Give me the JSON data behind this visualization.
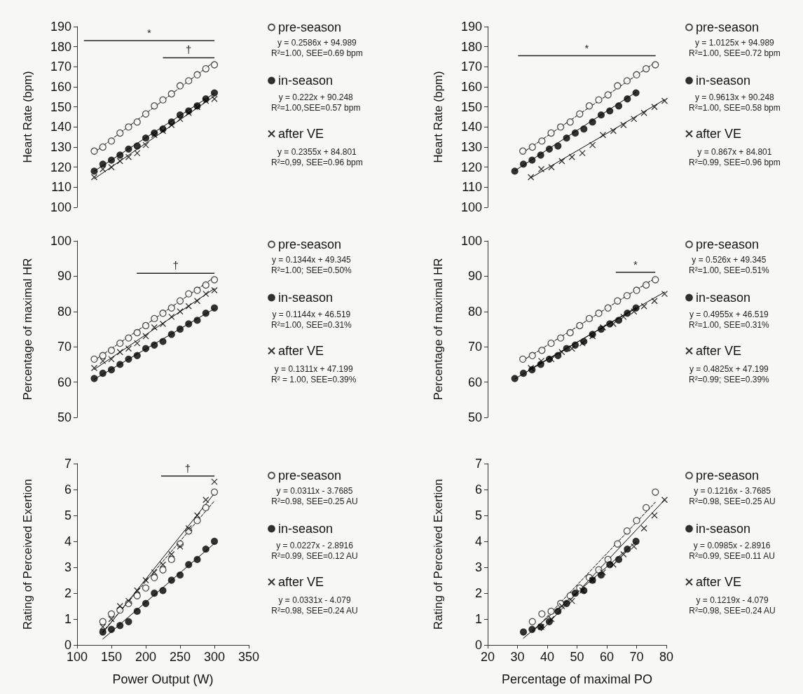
{
  "chart_data": [
    {
      "type": "scatter",
      "ylabel": "Heart Rate (bpm)",
      "xlim": [
        100,
        350
      ],
      "xticks": [
        100,
        150,
        200,
        250,
        300,
        350
      ],
      "ylim": [
        100,
        190
      ],
      "yticks": [
        100,
        110,
        120,
        130,
        140,
        150,
        160,
        170,
        180,
        190
      ],
      "tick_labels": "y",
      "legend": "right",
      "series": [
        {
          "name": "pre-season",
          "color": "#ffffff",
          "marker": "circle",
          "x": [
            125,
            137.5,
            150,
            162.5,
            175,
            187.5,
            200,
            212.5,
            225,
            237.5,
            250,
            262.5,
            275,
            287.5,
            300
          ],
          "values": [
            128,
            130,
            133,
            137,
            140,
            142.5,
            146.5,
            150.5,
            153.5,
            156.5,
            160.5,
            163,
            166,
            169,
            171
          ]
        },
        {
          "name": "in-season",
          "color": "#000000",
          "marker": "circle",
          "x": [
            125,
            137.5,
            150,
            162.5,
            175,
            187.5,
            200,
            212.5,
            225,
            237.5,
            250,
            262.5,
            275,
            287.5,
            300
          ],
          "values": [
            118,
            121.5,
            123.5,
            126,
            129,
            130.5,
            134.5,
            137,
            139,
            142.5,
            146,
            148,
            150.5,
            154,
            157
          ]
        },
        {
          "name": "after VE",
          "color": "#000000",
          "marker": "cross",
          "x": [
            125,
            137.5,
            150,
            162.5,
            175,
            187.5,
            200,
            212.5,
            225,
            237.5,
            250,
            262.5,
            275,
            287.5,
            300
          ],
          "values": [
            115,
            119,
            120,
            123,
            125,
            127,
            131,
            136,
            138,
            141,
            144,
            147,
            150,
            153,
            154
          ]
        },
        {
          "type": "line",
          "color": "#000000",
          "line_style": "dashed",
          "marker": "none",
          "x": [
            125,
            300
          ],
          "values": [
            127.3,
            172.6
          ]
        },
        {
          "type": "line",
          "color": "#000000",
          "line_style": "solid",
          "marker": "none",
          "x": [
            125,
            300
          ],
          "values": [
            118,
            156.8
          ]
        },
        {
          "type": "line",
          "color": "#000000",
          "line_style": "solid",
          "marker": "none",
          "x": [
            125,
            300
          ],
          "values": [
            114.2,
            155.4
          ]
        }
      ],
      "annotations": [
        "*",
        "†",
        "y = 0.2586x + 94.989\nR²=1.00, SEE=0.69 bpm",
        "y = 0.222x + 90.248\nR²=1.00,SEE=0.57 bpm",
        "y = 0.2355x + 84.801\nR²=0,99, SEE=0.96 bpm"
      ]
    },
    {
      "type": "scatter",
      "ylabel": "Heart Rate (bpm)",
      "xlim": [
        20,
        80
      ],
      "xticks": [
        20,
        30,
        40,
        50,
        60,
        70,
        80
      ],
      "ylim": [
        100,
        190
      ],
      "yticks": [
        100,
        110,
        120,
        130,
        140,
        150,
        160,
        170,
        180,
        190
      ],
      "tick_labels": "y",
      "legend": "right",
      "series": [
        {
          "name": "pre-season",
          "color": "#ffffff",
          "marker": "circle",
          "x": [
            31.8,
            35.0,
            38.2,
            41.3,
            44.5,
            47.7,
            50.9,
            54.1,
            57.3,
            60.4,
            63.6,
            66.8,
            70.0,
            73.2,
            76.3
          ],
          "values": [
            128,
            130,
            133,
            137,
            140,
            142.5,
            146.5,
            150.5,
            153.5,
            156,
            160.5,
            163,
            166,
            169,
            171
          ]
        },
        {
          "name": "in-season",
          "color": "#000000",
          "marker": "circle",
          "x": [
            29.1,
            32.0,
            34.9,
            37.8,
            40.7,
            43.6,
            46.5,
            49.4,
            52.3,
            55.2,
            58.1,
            61.0,
            64.0,
            66.9,
            69.8
          ],
          "values": [
            118,
            121.5,
            123.5,
            126,
            129,
            130.5,
            134.5,
            137,
            139,
            142.5,
            146,
            148,
            150.5,
            154,
            157
          ]
        },
        {
          "name": "after VE",
          "color": "#000000",
          "marker": "cross",
          "x": [
            34.5,
            38.0,
            41.4,
            44.9,
            48.3,
            51.8,
            55.2,
            58.7,
            62.2,
            65.6,
            69.1,
            72.5,
            76.0,
            79.4
          ],
          "values": [
            115,
            119,
            120,
            123,
            125,
            127,
            131,
            136,
            138,
            141,
            144,
            147,
            150,
            153
          ]
        },
        {
          "type": "line",
          "color": "#000000",
          "line_style": "dashed",
          "marker": "none",
          "x": [
            31.8,
            76.3
          ],
          "values": [
            127.2,
            172.2
          ]
        },
        {
          "type": "line",
          "color": "#000000",
          "line_style": "solid",
          "marker": "none",
          "x": [
            29.1,
            69.8
          ],
          "values": [
            118.2,
            157.3
          ]
        },
        {
          "type": "line",
          "color": "#000000",
          "line_style": "solid",
          "marker": "none",
          "x": [
            34.5,
            79.4
          ],
          "values": [
            114.7,
            153.6
          ]
        }
      ],
      "annotations": [
        "*",
        "y = 1.0125x + 94.989\nR²=1.00, SEE=0.72 bpm",
        "y = 0.9613x + 90.248\nR²=1.00, SEE=0.58 bpm",
        "y = 0.867x + 84.801\nR²=0.99, SEE=0.96 bpm"
      ]
    },
    {
      "type": "scatter",
      "ylabel": "Percentage of maximal HR",
      "xlim": [
        100,
        350
      ],
      "xticks": [
        100,
        150,
        200,
        250,
        300,
        350
      ],
      "ylim": [
        50,
        100
      ],
      "yticks": [
        50,
        60,
        70,
        80,
        90,
        100
      ],
      "tick_labels": "y",
      "legend": "right",
      "series": [
        {
          "name": "pre-season",
          "color": "#ffffff",
          "marker": "circle",
          "x": [
            125,
            137.5,
            150,
            162.5,
            175,
            187.5,
            200,
            212.5,
            225,
            237.5,
            250,
            262.5,
            275,
            287.5,
            300
          ],
          "values": [
            66.5,
            67.5,
            69,
            71,
            72.5,
            74,
            76,
            78,
            79.5,
            81,
            83,
            85,
            86,
            87.5,
            89
          ]
        },
        {
          "name": "in-season",
          "color": "#000000",
          "marker": "circle",
          "x": [
            125,
            137.5,
            150,
            162.5,
            175,
            187.5,
            200,
            212.5,
            225,
            237.5,
            250,
            262.5,
            275,
            287.5,
            300
          ],
          "values": [
            61,
            62.5,
            63.5,
            65,
            66.5,
            67.5,
            69.5,
            70.5,
            71.5,
            73.5,
            75,
            76.5,
            77.5,
            79.5,
            81
          ]
        },
        {
          "name": "after VE",
          "color": "#000000",
          "marker": "cross",
          "x": [
            125,
            137.5,
            150,
            162.5,
            175,
            187.5,
            200,
            212.5,
            225,
            237.5,
            250,
            262.5,
            275,
            287.5,
            300
          ],
          "values": [
            64,
            66,
            66.5,
            68.5,
            69.5,
            71,
            73,
            75.5,
            76.5,
            78.5,
            80,
            81.5,
            83,
            85,
            86
          ]
        },
        {
          "type": "line",
          "color": "#000000",
          "line_style": "dashed",
          "marker": "none",
          "x": [
            125,
            300
          ],
          "values": [
            66.1,
            89.7
          ]
        },
        {
          "type": "line",
          "color": "#000000",
          "line_style": "solid",
          "marker": "none",
          "x": [
            125,
            300
          ],
          "values": [
            60.8,
            80.8
          ]
        },
        {
          "type": "line",
          "color": "#000000",
          "line_style": "solid",
          "marker": "none",
          "x": [
            125,
            300
          ],
          "values": [
            63.6,
            86.5
          ]
        }
      ],
      "annotations": [
        "†",
        "y = 0.1344x + 49.345\nR²=1.00; SEE=0.50%",
        "y = 0.1144x + 46.519\nR²=1.00, SEE=0.31%",
        "y = 0.1311x + 47.199\nR² = 1.00, SEE=0.39%"
      ]
    },
    {
      "type": "scatter",
      "ylabel": "Percentage of maximal HR",
      "xlim": [
        20,
        80
      ],
      "xticks": [
        20,
        30,
        40,
        50,
        60,
        70,
        80
      ],
      "ylim": [
        50,
        100
      ],
      "yticks": [
        50,
        60,
        70,
        80,
        90,
        100
      ],
      "tick_labels": "y",
      "legend": "right",
      "series": [
        {
          "name": "pre-season",
          "color": "#ffffff",
          "marker": "circle",
          "x": [
            31.8,
            35.0,
            38.2,
            41.3,
            44.5,
            47.7,
            50.9,
            54.1,
            57.3,
            60.4,
            63.6,
            66.8,
            70.0,
            73.2,
            76.3
          ],
          "values": [
            66.5,
            67.5,
            69,
            71,
            72.5,
            74,
            76,
            78,
            79.5,
            81,
            83,
            84.5,
            86,
            87.5,
            89
          ]
        },
        {
          "name": "in-season",
          "color": "#000000",
          "marker": "circle",
          "x": [
            29.1,
            32.0,
            34.9,
            37.8,
            40.7,
            43.6,
            46.5,
            49.4,
            52.3,
            55.2,
            58.1,
            61.0,
            64.0,
            66.9,
            69.8
          ],
          "values": [
            61,
            62.5,
            63.5,
            65,
            66.5,
            67.5,
            69.5,
            70.5,
            71.5,
            73.5,
            75,
            76.5,
            77.5,
            79.5,
            81
          ]
        },
        {
          "name": "after VE",
          "color": "#000000",
          "marker": "cross",
          "x": [
            34.5,
            38.0,
            41.4,
            44.9,
            48.3,
            51.8,
            55.2,
            58.7,
            62.2,
            65.6,
            69.1,
            72.5,
            76.0,
            79.4
          ],
          "values": [
            64,
            66,
            66.5,
            68.5,
            69.5,
            71,
            73,
            75.5,
            76.5,
            78.5,
            80,
            81.5,
            83,
            85
          ]
        },
        {
          "type": "line",
          "color": "#000000",
          "line_style": "dashed",
          "marker": "none",
          "x": [
            31.8,
            76.3
          ],
          "values": [
            66.1,
            89.5
          ]
        },
        {
          "type": "line",
          "color": "#000000",
          "line_style": "solid",
          "marker": "none",
          "x": [
            29.1,
            69.8
          ],
          "values": [
            60.9,
            81.1
          ]
        },
        {
          "type": "line",
          "color": "#000000",
          "line_style": "solid",
          "marker": "none",
          "x": [
            34.5,
            79.4
          ],
          "values": [
            63.8,
            85.5
          ]
        }
      ],
      "annotations": [
        "*",
        "y = 0.526x + 49.345\nR²=1.00, SEE=0.51%",
        "y = 0.4955x + 46.519\nR²=1.00, SEE=0.31%",
        "y = 0.4825x + 47.199\nR²=0.99; SEE=0.39%"
      ]
    },
    {
      "type": "scatter",
      "ylabel": "Rating of Perceived Exertion",
      "xlabel": "Power Output (W)",
      "xlim": [
        100,
        350
      ],
      "xticks": [
        100,
        150,
        200,
        250,
        300,
        350
      ],
      "ylim": [
        0,
        7
      ],
      "yticks": [
        0,
        1,
        2,
        3,
        4,
        5,
        6,
        7
      ],
      "legend": "right",
      "series": [
        {
          "name": "pre-season",
          "color": "#ffffff",
          "marker": "circle",
          "x": [
            137.5,
            150,
            162.5,
            175,
            187.5,
            200,
            212.5,
            225,
            237.5,
            250,
            262.5,
            275,
            287.5,
            300
          ],
          "values": [
            0.9,
            1.2,
            1.35,
            1.6,
            1.9,
            2.2,
            2.6,
            2.9,
            3.3,
            3.9,
            4.4,
            4.8,
            5.3,
            5.9
          ]
        },
        {
          "name": "in-season",
          "color": "#000000",
          "marker": "circle",
          "x": [
            137.5,
            150,
            162.5,
            175,
            187.5,
            200,
            212.5,
            225,
            237.5,
            250,
            262.5,
            275,
            287.5,
            300
          ],
          "values": [
            0.5,
            0.6,
            0.75,
            0.9,
            1.3,
            1.6,
            2.0,
            2.1,
            2.5,
            2.7,
            3.1,
            3.3,
            3.7,
            4.0
          ]
        },
        {
          "name": "after VE",
          "color": "#000000",
          "marker": "cross",
          "x": [
            137.5,
            150,
            162.5,
            175,
            187.5,
            200,
            212.5,
            225,
            237.5,
            250,
            262.5,
            275,
            287.5,
            300
          ],
          "values": [
            0.7,
            1.0,
            1.5,
            1.7,
            2.1,
            2.5,
            2.8,
            3.1,
            3.5,
            3.8,
            4.5,
            5.0,
            5.6,
            6.3
          ]
        },
        {
          "type": "line",
          "color": "#000000",
          "line_style": "dashed",
          "marker": "none",
          "x": [
            137.5,
            300
          ],
          "values": [
            0.51,
            5.56
          ]
        },
        {
          "type": "line",
          "color": "#000000",
          "line_style": "solid",
          "marker": "none",
          "x": [
            137.5,
            300
          ],
          "values": [
            0.23,
            3.92
          ]
        },
        {
          "type": "line",
          "color": "#000000",
          "line_style": "solid",
          "marker": "none",
          "x": [
            137.5,
            300
          ],
          "values": [
            0.47,
            5.85
          ]
        }
      ],
      "annotations": [
        "†",
        "y = 0.0311x - 3.7685\nR²=0.98, SEE=0.25 AU",
        "y = 0.0227x - 2.8916\nR²=0.99, SEE=0.12 AU",
        "y = 0.0331x - 4.079\nR²=0.98, SEE=0.24 AU"
      ]
    },
    {
      "type": "scatter",
      "ylabel": "Rating of Perceived Exertion",
      "xlabel": "Percentage of maximal PO",
      "xlim": [
        20,
        80
      ],
      "xticks": [
        20,
        30,
        40,
        50,
        60,
        70,
        80
      ],
      "ylim": [
        0,
        7
      ],
      "yticks": [
        0,
        1,
        2,
        3,
        4,
        5,
        6,
        7
      ],
      "legend": "right",
      "series": [
        {
          "name": "pre-season",
          "color": "#ffffff",
          "marker": "circle",
          "x": [
            35.0,
            38.2,
            41.3,
            44.5,
            47.7,
            50.9,
            54.1,
            57.3,
            60.4,
            63.6,
            66.8,
            70.0,
            73.2,
            76.3
          ],
          "values": [
            0.9,
            1.2,
            1.3,
            1.6,
            1.9,
            2.2,
            2.6,
            2.9,
            3.3,
            3.9,
            4.4,
            4.8,
            5.3,
            5.9
          ]
        },
        {
          "name": "in-season",
          "color": "#000000",
          "marker": "circle",
          "x": [
            32.0,
            34.9,
            37.8,
            40.7,
            43.6,
            46.5,
            49.4,
            52.3,
            55.2,
            58.1,
            61.0,
            64.0,
            66.9,
            69.8
          ],
          "values": [
            0.5,
            0.6,
            0.7,
            0.9,
            1.3,
            1.6,
            2.0,
            2.1,
            2.5,
            2.7,
            3.1,
            3.3,
            3.7,
            4.0
          ]
        },
        {
          "name": "after VE",
          "color": "#000000",
          "marker": "cross",
          "x": [
            38.0,
            41.4,
            44.9,
            48.3,
            51.8,
            55.2,
            58.7,
            62.2,
            65.6,
            69.1,
            72.5,
            76.0,
            79.4
          ],
          "values": [
            0.7,
            1.0,
            1.5,
            1.7,
            2.1,
            2.5,
            2.8,
            3.1,
            3.5,
            3.8,
            4.5,
            5.0,
            5.6
          ]
        },
        {
          "type": "line",
          "color": "#000000",
          "line_style": "dashed",
          "marker": "none",
          "x": [
            35.0,
            76.3
          ],
          "values": [
            0.49,
            5.51
          ]
        },
        {
          "type": "line",
          "color": "#000000",
          "line_style": "solid",
          "marker": "none",
          "x": [
            32.0,
            69.8
          ],
          "values": [
            0.26,
            3.98
          ]
        },
        {
          "type": "line",
          "color": "#000000",
          "line_style": "solid",
          "marker": "none",
          "x": [
            38.0,
            79.4
          ],
          "values": [
            0.55,
            5.6
          ]
        }
      ],
      "annotations": [
        "y = 0.1216x - 3.7685\nR²=0.98, SEE=0.25 AU",
        "y = 0.0985x - 2.8916\nR²=0.99, SEE=0.11 AU",
        "y = 0.1219x - 4.079\nR²=0.98, SEE=0.24 AU"
      ]
    }
  ]
}
